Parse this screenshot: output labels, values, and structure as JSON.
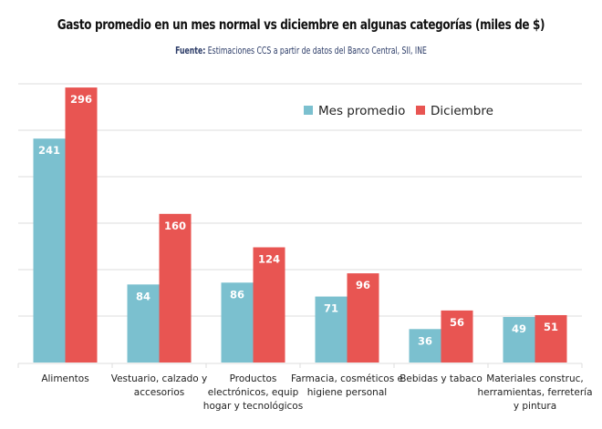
{
  "header": {
    "title": "Gasto promedio en un mes normal vs diciembre en algunas categorías (miles de $)",
    "source_label": "Fuente:",
    "source_text": "Estimaciones CCS a partir de datos del Banco Central, SII, INE"
  },
  "chart_data": {
    "type": "bar",
    "title": "Gasto promedio en un mes normal vs diciembre en algunas categorías (miles de $)",
    "subtitle": "Fuente: Estimaciones CCS a partir de datos del Banco Central, SII, INE",
    "xlabel": "",
    "ylabel": "",
    "ylim": [
      0,
      300
    ],
    "grid": true,
    "gridline_step": 50,
    "y_ticks_visible": false,
    "legend_position": "top-right",
    "categories": [
      [
        "Alimentos"
      ],
      [
        "Vestuario, calzado y",
        "accesorios"
      ],
      [
        "Productos",
        "electrónicos, equip",
        "hogar y tecnológicos"
      ],
      [
        "Farmacia, cosméticos e",
        "higiene personal"
      ],
      [
        "Bebidas y tabaco"
      ],
      [
        "Materiales construc,",
        "herramientas, ferretería",
        "y pintura"
      ]
    ],
    "series": [
      {
        "name": "Mes promedio",
        "color": "#7bc0cf",
        "values": [
          241,
          84,
          86,
          71,
          36,
          49
        ]
      },
      {
        "name": "Diciembre",
        "color": "#e85552",
        "values": [
          296,
          160,
          124,
          96,
          56,
          51
        ]
      }
    ],
    "data_labels": true,
    "data_label_color": "#ffffff"
  }
}
